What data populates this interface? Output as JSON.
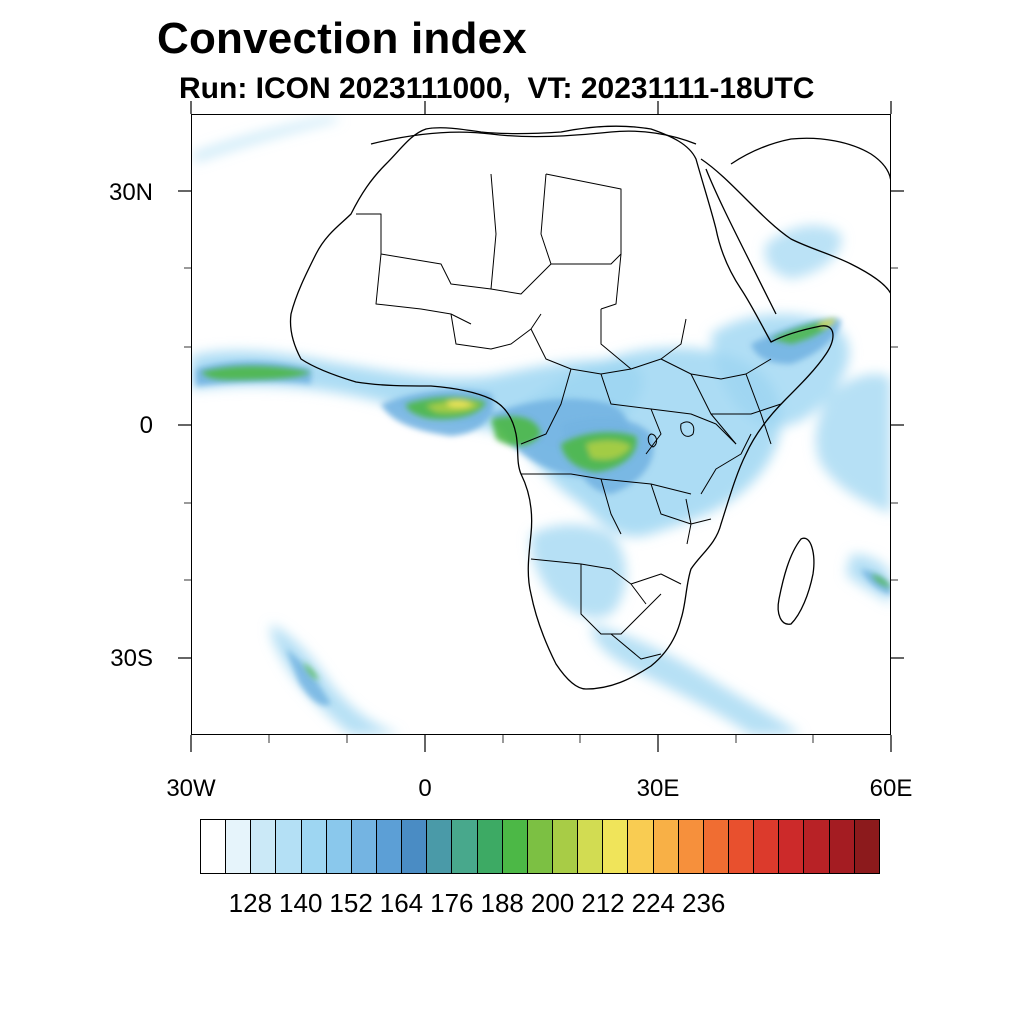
{
  "header": {
    "title": "Convection index",
    "subtitle": "Run: ICON 2023111000,  VT: 20231111-18UTC"
  },
  "map": {
    "lon_range": [
      -30,
      60
    ],
    "lat_range": [
      -40,
      40
    ],
    "lat_ticks": [
      {
        "value": 30,
        "label": "30N"
      },
      {
        "value": 0,
        "label": "0"
      },
      {
        "value": -30,
        "label": "30S"
      }
    ],
    "lon_ticks": [
      {
        "value": -30,
        "label": "30W"
      },
      {
        "value": 0,
        "label": "0"
      },
      {
        "value": 30,
        "label": "30E"
      },
      {
        "value": 60,
        "label": "60E"
      }
    ]
  },
  "colorbar": {
    "colors": [
      "#ffffff",
      "#e6f4fb",
      "#cbe9f7",
      "#b4e0f5",
      "#9ed6f2",
      "#8ac8ec",
      "#74b4e2",
      "#5c9fd6",
      "#4a8cc4",
      "#4a9aa8",
      "#48a88c",
      "#3daa64",
      "#4cb846",
      "#7cc043",
      "#a8cc46",
      "#d2dc52",
      "#f0e45a",
      "#f9cc52",
      "#f8b046",
      "#f6903c",
      "#f06d32",
      "#e8502e",
      "#dc3a2c",
      "#cc2a2a",
      "#b82226",
      "#a41c22",
      "#8c1a1c"
    ],
    "labels": [
      "128",
      "140",
      "152",
      "164",
      "176",
      "188",
      "200",
      "212",
      "224",
      "236"
    ]
  }
}
